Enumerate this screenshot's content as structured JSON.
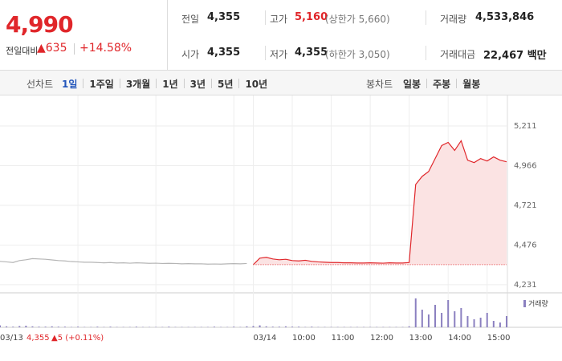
{
  "quote": {
    "price": "4,990",
    "change_label": "전일대비",
    "change": "▲635",
    "rate": "+14.58%"
  },
  "summary": {
    "rows": [
      [
        {
          "label": "전일",
          "value": "4,355"
        },
        {
          "label": "고가",
          "value": "5,160",
          "note": "(상한가 5,660)"
        },
        {
          "label": "거래량",
          "value": "4,533,846"
        }
      ],
      [
        {
          "label": "시가",
          "value": "4,355"
        },
        {
          "label": "저가",
          "value": "4,355",
          "note": "(하한가 3,050)"
        },
        {
          "label": "거래대금",
          "value": "22,467 백만"
        }
      ]
    ]
  },
  "tabs": {
    "line_label": "선차트",
    "line_periods": [
      "1일",
      "1주일",
      "3개월",
      "1년",
      "3년",
      "5년",
      "10년"
    ],
    "candle_label": "봉차트",
    "candle_periods": [
      "일봉",
      "주봉",
      "월봉"
    ]
  },
  "chart_data": {
    "type": "line",
    "xlim": [
      0,
      78
    ],
    "xticks": [
      {
        "value": 0,
        "label": "03/13"
      },
      {
        "value": 12,
        "label": null
      },
      {
        "value": 24,
        "label": null
      },
      {
        "value": 36,
        "label": null
      },
      {
        "value": 39,
        "label": "03/14"
      },
      {
        "value": 45,
        "label": "10:00"
      },
      {
        "value": 51,
        "label": "11:00"
      },
      {
        "value": 57,
        "label": "12:00"
      },
      {
        "value": 63,
        "label": "13:00"
      },
      {
        "value": 69,
        "label": "14:00"
      },
      {
        "value": 75,
        "label": "15:00"
      }
    ],
    "ylim": [
      4181,
      5345
    ],
    "yticks": [
      {
        "value": 4231,
        "label": "4,231"
      },
      {
        "value": 4476,
        "label": "4,476"
      },
      {
        "value": 4721,
        "label": "4,721"
      },
      {
        "value": 4966,
        "label": "4,966"
      },
      {
        "value": 5211,
        "label": "5,211"
      }
    ],
    "grid": true,
    "reference_line": 4355,
    "series": [
      {
        "color": "#b5b5b5",
        "values": [
          4375,
          4372,
          4368,
          4380,
          4385,
          4392,
          4390,
          4388,
          4384,
          4380,
          4378,
          4374,
          4372,
          4370,
          4370,
          4368,
          4366,
          4368,
          4365,
          4366,
          4364,
          4366,
          4365,
          4363,
          4364,
          4362,
          4363,
          4362,
          4360,
          4361,
          4360,
          4360,
          4358,
          4359,
          4358,
          4360,
          4361,
          4360,
          4362,
          null,
          null,
          null,
          null,
          null,
          null,
          null,
          null,
          null,
          null,
          null,
          null,
          null,
          null,
          null,
          null,
          null,
          null,
          null,
          null,
          null,
          null,
          null,
          null,
          null,
          null,
          null,
          null,
          null,
          null,
          null,
          null,
          null,
          null,
          null,
          null,
          null,
          null,
          null,
          null
        ]
      },
      {
        "color": "#e0262a",
        "fill": "#fbe3e3",
        "values": [
          null,
          null,
          null,
          null,
          null,
          null,
          null,
          null,
          null,
          null,
          null,
          null,
          null,
          null,
          null,
          null,
          null,
          null,
          null,
          null,
          null,
          null,
          null,
          null,
          null,
          null,
          null,
          null,
          null,
          null,
          null,
          null,
          null,
          null,
          null,
          null,
          null,
          null,
          null,
          4355,
          4395,
          4400,
          4390,
          4385,
          4388,
          4380,
          4378,
          4382,
          4375,
          4372,
          4370,
          4368,
          4368,
          4366,
          4366,
          4365,
          4365,
          4366,
          4365,
          4364,
          4366,
          4365,
          4365,
          4368,
          4850,
          4900,
          4930,
          5010,
          5090,
          5110,
          5060,
          5120,
          5000,
          4985,
          5010,
          4995,
          5020,
          5000,
          4990
        ]
      }
    ],
    "volume": {
      "name": "거래량",
      "color": "#8b80c0",
      "ylim": [
        0,
        100
      ],
      "values": [
        6,
        3,
        2,
        4,
        5,
        3,
        2,
        2,
        3,
        2,
        2,
        1,
        2,
        1,
        1,
        2,
        1,
        2,
        1,
        1,
        1,
        2,
        1,
        1,
        1,
        1,
        2,
        1,
        1,
        1,
        1,
        1,
        1,
        2,
        1,
        1,
        2,
        1,
        3,
        4,
        6,
        3,
        2,
        2,
        3,
        2,
        2,
        1,
        2,
        1,
        1,
        1,
        1,
        1,
        1,
        1,
        1,
        1,
        1,
        1,
        1,
        1,
        1,
        3,
        90,
        55,
        40,
        70,
        45,
        85,
        50,
        60,
        35,
        25,
        30,
        45,
        20,
        15,
        35
      ]
    },
    "prev_day": {
      "close": "4,355",
      "change": "▲5 (+0.11%)"
    }
  }
}
